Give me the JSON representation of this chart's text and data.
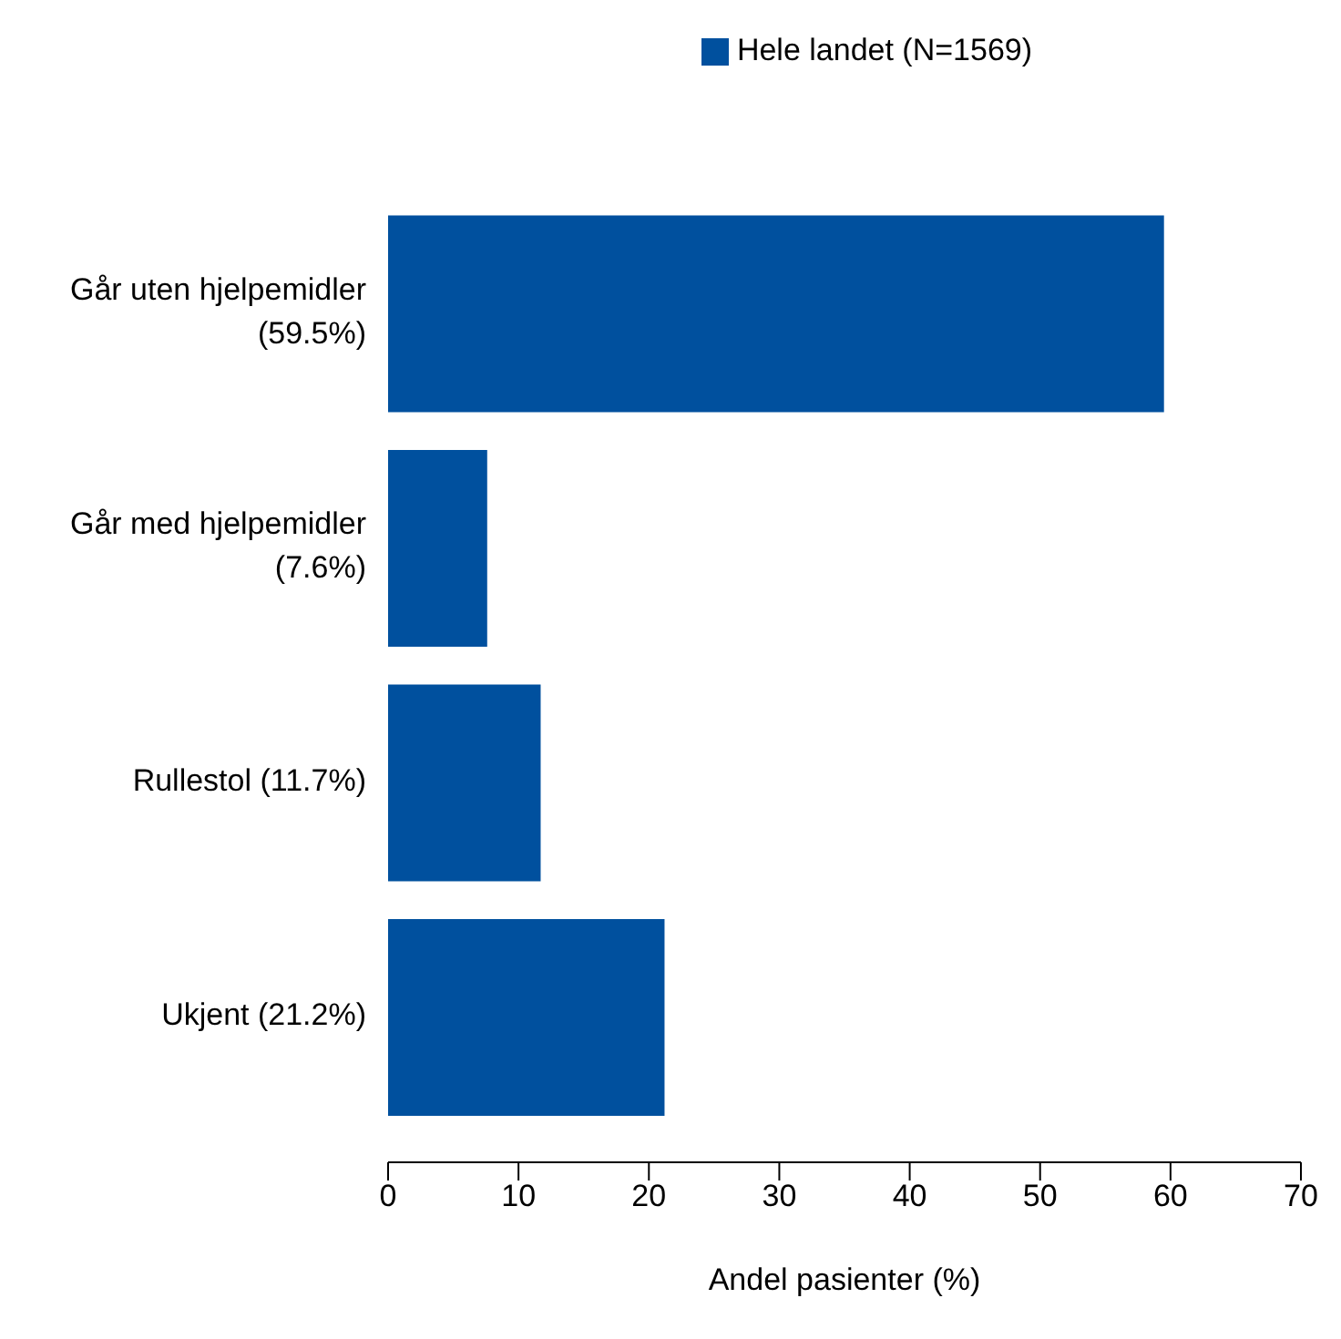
{
  "chart_data": {
    "type": "bar",
    "orientation": "horizontal",
    "xlabel": "Andel pasienter (%)",
    "categories": [
      "Går uten hjelpemidler\n(59.5%)",
      "Går med hjelpemidler\n(7.6%)",
      "Rullestol (11.7%)",
      "Ukjent (21.2%)"
    ],
    "series": [
      {
        "name": "Hele landet (N=1569)",
        "color": "#00509e",
        "values": [
          59.5,
          7.6,
          11.7,
          21.2
        ]
      }
    ],
    "xlim": [
      0,
      70
    ],
    "xticks": [
      0,
      10,
      20,
      30,
      40,
      50,
      60,
      70
    ],
    "grid": false,
    "legend": "top"
  }
}
